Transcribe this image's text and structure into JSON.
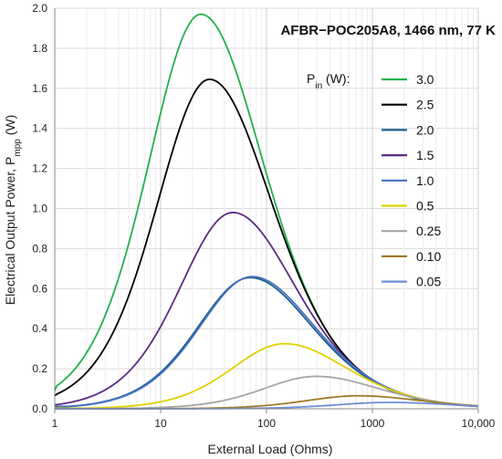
{
  "chart_data": {
    "type": "line",
    "title": "AFBR−POC205A8, 1466 nm, 77 K",
    "xlabel": "External Load (Ohms)",
    "ylabel_main": "Electrical Output Power, P",
    "ylabel_sub": "mpp",
    "ylabel_unit": " (W)",
    "x_scale": "log",
    "xlim": [
      1,
      10000
    ],
    "ylim": [
      0,
      2.0
    ],
    "grid": true,
    "x_ticks": [
      {
        "value": 1,
        "label": "1"
      },
      {
        "value": 10,
        "label": "10"
      },
      {
        "value": 100,
        "label": "100"
      },
      {
        "value": 1000,
        "label": "1000"
      },
      {
        "value": 10000,
        "label": "10,000"
      }
    ],
    "y_ticks": [
      {
        "value": 0,
        "label": "0.0"
      },
      {
        "value": 0.2,
        "label": "0.2"
      },
      {
        "value": 0.4,
        "label": "0.4"
      },
      {
        "value": 0.6,
        "label": "0.6"
      },
      {
        "value": 0.8,
        "label": "0.8"
      },
      {
        "value": 1.0,
        "label": "1.0"
      },
      {
        "value": 1.2,
        "label": "1.2"
      },
      {
        "value": 1.4,
        "label": "1.4"
      },
      {
        "value": 1.6,
        "label": "1.6"
      },
      {
        "value": 1.8,
        "label": "1.8"
      },
      {
        "value": 2.0,
        "label": "2.0"
      }
    ],
    "legend": {
      "placement": "right",
      "title_main": "P",
      "title_sub": "in",
      "title_unit": " (W):"
    },
    "series": [
      {
        "name": "3.0",
        "color": "#22b14c",
        "peak_x": 24,
        "peak_y": 1.97,
        "low_x": 1,
        "low_y": 0.09
      },
      {
        "name": "2.5",
        "color": "#000000",
        "peak_x": 29,
        "peak_y": 1.645,
        "low_x": 1,
        "low_y": 0.065
      },
      {
        "name": "2.0",
        "color": "#1f5f8b",
        "peak_x": 70,
        "peak_y": 0.655,
        "low_x": 1,
        "low_y": 0.01
      },
      {
        "name": "1.5",
        "color": "#5b2c83",
        "peak_x": 48,
        "peak_y": 0.98,
        "low_x": 1,
        "low_y": 0.02
      },
      {
        "name": "1.0",
        "color": "#4472c4",
        "peak_x": 73,
        "peak_y": 0.66,
        "low_x": 1,
        "low_y": 0.012
      },
      {
        "name": "0.5",
        "color": "#e0d000",
        "peak_x": 148,
        "peak_y": 0.325,
        "low_x": 1,
        "low_y": 0.003
      },
      {
        "name": "0.25",
        "color": "#a6a6a6",
        "peak_x": 295,
        "peak_y": 0.162,
        "low_x": 1,
        "low_y": 0.001
      },
      {
        "name": "0.10",
        "color": "#a07a2a",
        "peak_x": 740,
        "peak_y": 0.065,
        "low_x": 1,
        "low_y": 0.0005
      },
      {
        "name": "0.05",
        "color": "#6f8fd6",
        "peak_x": 1450,
        "peak_y": 0.032,
        "low_x": 1,
        "low_y": 0.0002
      }
    ]
  }
}
